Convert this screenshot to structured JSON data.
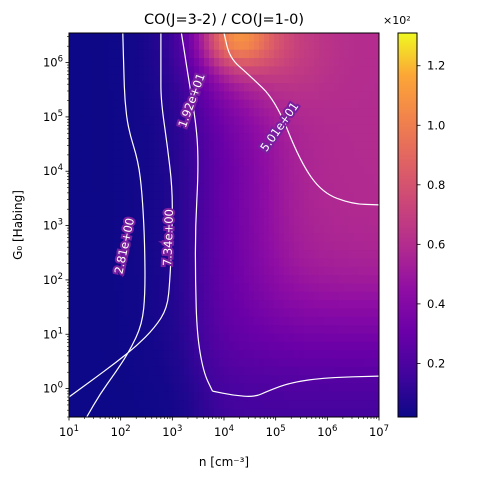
{
  "chart_data": {
    "type": "heatmap",
    "title": "CO(J=3-2) / CO(J=1-0)",
    "xlabel": "n [cm⁻³]",
    "ylabel": "G₀ [Habing]",
    "xscale": "log",
    "yscale": "log",
    "xlim": [
      10,
      10000000
    ],
    "ylim": [
      0.3,
      3500000
    ],
    "x_ticks": [
      {
        "value": 10,
        "base": "10",
        "exp": "1"
      },
      {
        "value": 100,
        "base": "10",
        "exp": "2"
      },
      {
        "value": 1000,
        "base": "10",
        "exp": "3"
      },
      {
        "value": 10000,
        "base": "10",
        "exp": "4"
      },
      {
        "value": 100000,
        "base": "10",
        "exp": "5"
      },
      {
        "value": 1000000,
        "base": "10",
        "exp": "6"
      },
      {
        "value": 10000000,
        "base": "10",
        "exp": "7"
      }
    ],
    "y_ticks": [
      {
        "value": 1,
        "base": "10",
        "exp": "0"
      },
      {
        "value": 10,
        "base": "10",
        "exp": "1"
      },
      {
        "value": 100,
        "base": "10",
        "exp": "2"
      },
      {
        "value": 1000,
        "base": "10",
        "exp": "3"
      },
      {
        "value": 10000,
        "base": "10",
        "exp": "4"
      },
      {
        "value": 100000,
        "base": "10",
        "exp": "5"
      },
      {
        "value": 1000000,
        "base": "10",
        "exp": "6"
      }
    ],
    "colormap": "plasma",
    "colorbar": {
      "multiplier_label": "×10²",
      "vmin": 0.02,
      "vmax": 1.31,
      "ticks": [
        {
          "value": 0.2,
          "label": "0.2"
        },
        {
          "value": 0.4,
          "label": "0.4"
        },
        {
          "value": 0.6,
          "label": "0.6"
        },
        {
          "value": 0.8,
          "label": "0.8"
        },
        {
          "value": 1.0,
          "label": "1.0"
        },
        {
          "value": 1.2,
          "label": "1.2"
        }
      ]
    },
    "contours": [
      {
        "label": "2.81e+00",
        "label_at": [
          120,
          420
        ],
        "label_angle": -78,
        "points": [
          [
            22,
            0.3
          ],
          [
            40,
            0.8
          ],
          [
            80,
            2
          ],
          [
            150,
            5
          ],
          [
            260,
            15
          ],
          [
            300,
            60
          ],
          [
            290,
            600
          ],
          [
            260,
            4000
          ],
          [
            220,
            15000
          ],
          [
            140,
            60000
          ],
          [
            120,
            200000
          ],
          [
            115,
            700000
          ],
          [
            110,
            3500000
          ]
        ]
      },
      {
        "label": "7.34e+00",
        "label_at": [
          850,
          600
        ],
        "label_angle": -88,
        "points": [
          [
            10,
            0.7
          ],
          [
            30,
            1.5
          ],
          [
            80,
            3
          ],
          [
            200,
            6
          ],
          [
            450,
            13
          ],
          [
            800,
            30
          ],
          [
            900,
            100
          ],
          [
            1000,
            1000
          ],
          [
            1000,
            5000
          ],
          [
            800,
            30000
          ],
          [
            600,
            200000
          ],
          [
            600,
            700000
          ],
          [
            600,
            3500000
          ]
        ]
      },
      {
        "label": "1.92e+01",
        "label_at": [
          2400,
          200000
        ],
        "label_angle": -70,
        "points": [
          [
            6000,
            0.9
          ],
          [
            4000,
            2
          ],
          [
            3000,
            10
          ],
          [
            2800,
            100
          ],
          [
            2800,
            1000
          ],
          [
            3200,
            10000
          ],
          [
            3000,
            60000
          ],
          [
            2000,
            600000
          ],
          [
            1500,
            3500000
          ]
        ]
      },
      {
        "label": "5.01e+01",
        "label_at": [
          120000,
          65000
        ],
        "label_angle": -55,
        "points": [
          [
            10000,
            3500000
          ],
          [
            13000,
            1200000
          ],
          [
            30000,
            600000
          ],
          [
            100000,
            200000
          ],
          [
            300000,
            15000
          ],
          [
            800000,
            4000
          ],
          [
            3000000,
            2500
          ],
          [
            10000000,
            2400
          ]
        ]
      },
      {
        "label": "",
        "points": [
          [
            6000,
            0.9
          ],
          [
            15000,
            0.75
          ],
          [
            40000,
            0.7
          ],
          [
            70000,
            0.9
          ],
          [
            200000,
            1.3
          ],
          [
            1000000,
            1.6
          ],
          [
            10000000,
            1.7
          ]
        ]
      }
    ],
    "grid": false,
    "legend": "none"
  }
}
